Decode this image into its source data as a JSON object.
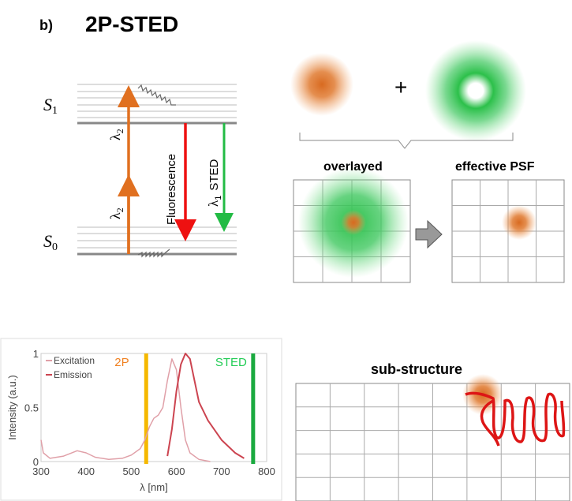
{
  "panel_label": "b)",
  "title": "2P-STED",
  "jablonski": {
    "s1_label": "S",
    "s1_sub": "1",
    "s0_label": "S",
    "s0_sub": "0",
    "excitation_label": "λ",
    "excitation_sub": "2",
    "fluorescence_label": "Fluorescence",
    "sted_label_lambda": "λ",
    "sted_sub": "1",
    "sted_label": "STED",
    "colors": {
      "excitation": "#e07020",
      "fluorescence": "#ee1111",
      "sted": "#22bb44"
    }
  },
  "psf": {
    "plus": "+",
    "overlayed_label": "overlayed",
    "effective_label": "effective PSF"
  },
  "substructure": {
    "title": "sub-structure"
  },
  "chart_data": {
    "type": "line",
    "xlabel": "λ [nm]",
    "ylabel": "Intensity (a.u.)",
    "xlim": [
      300,
      800
    ],
    "ylim": [
      0,
      1
    ],
    "xticks": [
      300,
      400,
      500,
      600,
      700,
      800
    ],
    "yticks": [
      {
        "v": 0,
        "label": "0"
      },
      {
        "v": 0.5,
        "label": "0.5"
      },
      {
        "v": 1,
        "label": "1"
      }
    ],
    "legend": "top-left",
    "series": [
      {
        "name": "Excitation",
        "color": "#e0a0a8",
        "x": [
          300,
          305,
          320,
          350,
          380,
          400,
          420,
          450,
          480,
          500,
          520,
          530,
          540,
          550,
          560,
          570,
          580,
          590,
          600,
          610,
          620,
          630,
          650,
          675
        ],
        "y": [
          0.2,
          0.08,
          0.03,
          0.05,
          0.1,
          0.08,
          0.04,
          0.02,
          0.03,
          0.06,
          0.12,
          0.2,
          0.32,
          0.4,
          0.43,
          0.5,
          0.75,
          0.95,
          0.85,
          0.5,
          0.2,
          0.08,
          0.02,
          0.0
        ]
      },
      {
        "name": "Emission",
        "color": "#cc4450",
        "x": [
          580,
          590,
          600,
          610,
          620,
          630,
          640,
          650,
          670,
          700,
          730,
          750
        ],
        "y": [
          0.05,
          0.3,
          0.65,
          0.9,
          1.0,
          0.95,
          0.75,
          0.55,
          0.38,
          0.2,
          0.08,
          0.03
        ]
      }
    ],
    "vlines": [
      {
        "x": 533,
        "label": "2P",
        "color": "#f5b800",
        "label_color": "#f08020"
      },
      {
        "x": 770,
        "label": "STED",
        "color": "#1aaa40",
        "label_color": "#22cc55"
      }
    ]
  }
}
